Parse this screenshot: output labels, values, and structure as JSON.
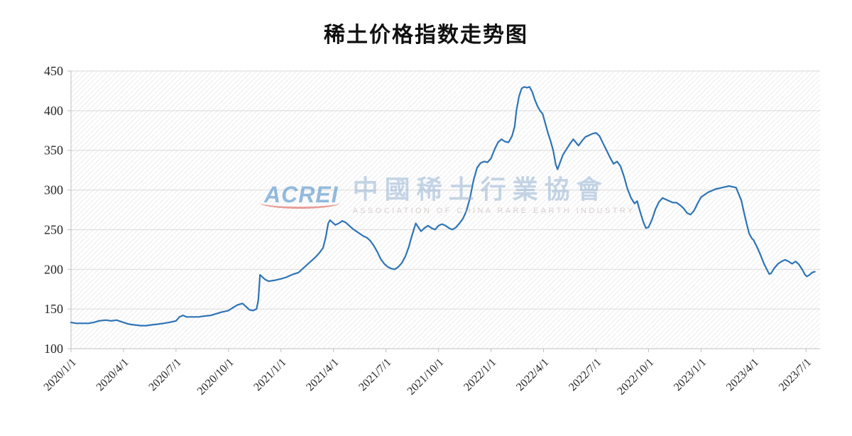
{
  "title": "稀土价格指数走势图",
  "watermark": {
    "logo": "ACREI",
    "cjk_text": "中國稀土行業協會",
    "subtext": "ASSOCIATION OF CHINA RARE EARTH INDUSTRY"
  },
  "chart_data": {
    "type": "line",
    "title": "稀土价格指数走势图",
    "xlabel": "",
    "ylabel": "",
    "legend": "none",
    "grid": "horizontal",
    "x_unit": "months since 2020-01-01",
    "xlim": [
      0,
      42.8
    ],
    "ylim": [
      100,
      450
    ],
    "y_ticks": [
      100,
      150,
      200,
      250,
      300,
      350,
      400,
      450
    ],
    "x_ticks": [
      {
        "pos": 0,
        "label": "2020/1/1"
      },
      {
        "pos": 3,
        "label": "2020/4/1"
      },
      {
        "pos": 6,
        "label": "2020/7/1"
      },
      {
        "pos": 9,
        "label": "2020/10/1"
      },
      {
        "pos": 12,
        "label": "2021/1/1"
      },
      {
        "pos": 15,
        "label": "2021/4/1"
      },
      {
        "pos": 18,
        "label": "2021/7/1"
      },
      {
        "pos": 21,
        "label": "2021/10/1"
      },
      {
        "pos": 24,
        "label": "2022/1/1"
      },
      {
        "pos": 27,
        "label": "2022/4/1"
      },
      {
        "pos": 30,
        "label": "2022/7/1"
      },
      {
        "pos": 33,
        "label": "2022/10/1"
      },
      {
        "pos": 36,
        "label": "2023/1/1"
      },
      {
        "pos": 39,
        "label": "2023/4/1"
      },
      {
        "pos": 42,
        "label": "2023/7/1"
      }
    ],
    "series": [
      {
        "name": "稀土价格指数",
        "color": "#2E74B5",
        "points": [
          [
            0,
            133
          ],
          [
            0.3,
            132
          ],
          [
            0.6,
            132
          ],
          [
            1,
            132
          ],
          [
            1.3,
            133
          ],
          [
            1.6,
            135
          ],
          [
            2,
            136
          ],
          [
            2.3,
            135
          ],
          [
            2.6,
            136
          ],
          [
            3,
            133
          ],
          [
            3.3,
            131
          ],
          [
            3.6,
            130
          ],
          [
            4,
            129
          ],
          [
            4.3,
            129
          ],
          [
            4.6,
            130
          ],
          [
            5,
            131
          ],
          [
            5.3,
            132
          ],
          [
            5.6,
            133
          ],
          [
            6,
            135
          ],
          [
            6.2,
            140
          ],
          [
            6.4,
            142
          ],
          [
            6.6,
            140
          ],
          [
            7,
            140
          ],
          [
            7.3,
            140
          ],
          [
            7.6,
            141
          ],
          [
            8,
            142
          ],
          [
            8.3,
            144
          ],
          [
            8.6,
            146
          ],
          [
            9,
            148
          ],
          [
            9.2,
            151
          ],
          [
            9.5,
            155
          ],
          [
            9.8,
            157
          ],
          [
            10,
            153
          ],
          [
            10.2,
            149
          ],
          [
            10.4,
            148
          ],
          [
            10.6,
            150
          ],
          [
            10.7,
            161
          ],
          [
            10.8,
            193
          ],
          [
            10.9,
            191
          ],
          [
            11.1,
            187
          ],
          [
            11.3,
            185
          ],
          [
            11.6,
            186
          ],
          [
            11.8,
            187
          ],
          [
            12,
            188
          ],
          [
            12.3,
            190
          ],
          [
            12.6,
            193
          ],
          [
            13,
            196
          ],
          [
            13.2,
            200
          ],
          [
            13.4,
            204
          ],
          [
            13.6,
            208
          ],
          [
            13.8,
            212
          ],
          [
            14,
            216
          ],
          [
            14.2,
            221
          ],
          [
            14.4,
            227
          ],
          [
            14.55,
            240
          ],
          [
            14.7,
            258
          ],
          [
            14.8,
            262
          ],
          [
            14.95,
            259
          ],
          [
            15.1,
            256
          ],
          [
            15.3,
            258
          ],
          [
            15.5,
            261
          ],
          [
            15.7,
            259
          ],
          [
            15.9,
            255
          ],
          [
            16.1,
            251
          ],
          [
            16.3,
            248
          ],
          [
            16.5,
            245
          ],
          [
            16.7,
            242
          ],
          [
            16.9,
            240
          ],
          [
            17.1,
            236
          ],
          [
            17.3,
            230
          ],
          [
            17.5,
            222
          ],
          [
            17.7,
            213
          ],
          [
            17.9,
            207
          ],
          [
            18.1,
            203
          ],
          [
            18.3,
            201
          ],
          [
            18.5,
            200
          ],
          [
            18.7,
            203
          ],
          [
            18.9,
            208
          ],
          [
            19.1,
            216
          ],
          [
            19.3,
            228
          ],
          [
            19.45,
            240
          ],
          [
            19.6,
            251
          ],
          [
            19.7,
            258
          ],
          [
            19.85,
            253
          ],
          [
            20,
            248
          ],
          [
            20.2,
            252
          ],
          [
            20.4,
            255
          ],
          [
            20.6,
            252
          ],
          [
            20.8,
            250
          ],
          [
            21,
            255
          ],
          [
            21.2,
            257
          ],
          [
            21.4,
            255
          ],
          [
            21.6,
            252
          ],
          [
            21.8,
            250
          ],
          [
            22,
            253
          ],
          [
            22.2,
            258
          ],
          [
            22.4,
            264
          ],
          [
            22.6,
            274
          ],
          [
            22.8,
            290
          ],
          [
            23,
            312
          ],
          [
            23.2,
            328
          ],
          [
            23.4,
            334
          ],
          [
            23.6,
            336
          ],
          [
            23.8,
            335
          ],
          [
            24,
            340
          ],
          [
            24.2,
            351
          ],
          [
            24.4,
            360
          ],
          [
            24.6,
            364
          ],
          [
            24.8,
            361
          ],
          [
            25,
            360
          ],
          [
            25.2,
            368
          ],
          [
            25.35,
            380
          ],
          [
            25.45,
            400
          ],
          [
            25.6,
            418
          ],
          [
            25.75,
            428
          ],
          [
            25.9,
            430
          ],
          [
            26.05,
            429
          ],
          [
            26.2,
            430
          ],
          [
            26.35,
            424
          ],
          [
            26.5,
            414
          ],
          [
            26.65,
            406
          ],
          [
            26.8,
            400
          ],
          [
            26.95,
            396
          ],
          [
            27.1,
            384
          ],
          [
            27.25,
            372
          ],
          [
            27.4,
            362
          ],
          [
            27.55,
            350
          ],
          [
            27.7,
            332
          ],
          [
            27.8,
            326
          ],
          [
            27.95,
            335
          ],
          [
            28.1,
            344
          ],
          [
            28.3,
            351
          ],
          [
            28.5,
            358
          ],
          [
            28.7,
            364
          ],
          [
            28.85,
            360
          ],
          [
            29,
            356
          ],
          [
            29.2,
            362
          ],
          [
            29.4,
            367
          ],
          [
            29.6,
            369
          ],
          [
            29.8,
            371
          ],
          [
            30,
            372
          ],
          [
            30.2,
            368
          ],
          [
            30.4,
            359
          ],
          [
            30.6,
            350
          ],
          [
            30.8,
            341
          ],
          [
            31,
            333
          ],
          [
            31.2,
            336
          ],
          [
            31.4,
            330
          ],
          [
            31.6,
            317
          ],
          [
            31.8,
            301
          ],
          [
            32,
            290
          ],
          [
            32.2,
            283
          ],
          [
            32.35,
            286
          ],
          [
            32.5,
            274
          ],
          [
            32.7,
            260
          ],
          [
            32.85,
            252
          ],
          [
            33,
            253
          ],
          [
            33.2,
            263
          ],
          [
            33.4,
            276
          ],
          [
            33.6,
            285
          ],
          [
            33.8,
            290
          ],
          [
            34,
            288
          ],
          [
            34.2,
            286
          ],
          [
            34.4,
            284
          ],
          [
            34.6,
            284
          ],
          [
            34.8,
            281
          ],
          [
            35,
            277
          ],
          [
            35.2,
            271
          ],
          [
            35.4,
            269
          ],
          [
            35.6,
            274
          ],
          [
            35.8,
            283
          ],
          [
            36,
            291
          ],
          [
            36.2,
            294
          ],
          [
            36.4,
            297
          ],
          [
            36.6,
            299
          ],
          [
            36.8,
            301
          ],
          [
            37,
            302
          ],
          [
            37.2,
            303
          ],
          [
            37.4,
            304
          ],
          [
            37.6,
            305
          ],
          [
            37.8,
            304
          ],
          [
            38,
            303
          ],
          [
            38.15,
            295
          ],
          [
            38.3,
            287
          ],
          [
            38.45,
            272
          ],
          [
            38.6,
            258
          ],
          [
            38.75,
            245
          ],
          [
            38.9,
            239
          ],
          [
            39,
            237
          ],
          [
            39.2,
            228
          ],
          [
            39.4,
            218
          ],
          [
            39.6,
            207
          ],
          [
            39.8,
            198
          ],
          [
            39.9,
            194
          ],
          [
            40,
            195
          ],
          [
            40.2,
            202
          ],
          [
            40.4,
            207
          ],
          [
            40.6,
            210
          ],
          [
            40.8,
            212
          ],
          [
            41,
            210
          ],
          [
            41.2,
            207
          ],
          [
            41.4,
            210
          ],
          [
            41.6,
            206
          ],
          [
            41.8,
            199
          ],
          [
            41.95,
            193
          ],
          [
            42.05,
            191
          ],
          [
            42.2,
            193
          ],
          [
            42.35,
            196
          ],
          [
            42.5,
            197
          ]
        ]
      }
    ]
  }
}
